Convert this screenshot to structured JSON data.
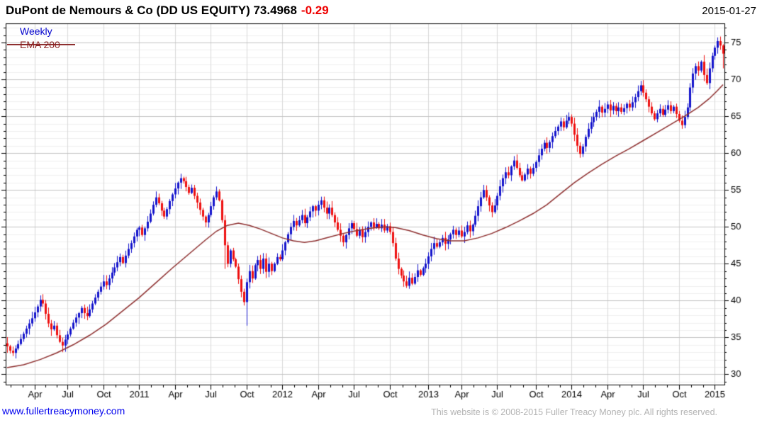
{
  "header": {
    "title_main": "DuPont de Nemours & Co (DD US EQUITY) 73.4968",
    "title_change": "-0.29",
    "date": "2015-01-27"
  },
  "legend": {
    "interval_label": "Weekly",
    "overlay_label": "EMA 200"
  },
  "footer": {
    "site_link": "www.fullertreacymoney.com",
    "copyright": "This website is © 2008-2015 Fuller Treacy Money plc. All rights reserved."
  },
  "colors": {
    "up_candle": "#1414cc",
    "down_candle": "#ee1111",
    "ema_line": "#8e2f2f",
    "grid_minor_h": "#efefef",
    "grid_major_h": "#c3c3c3",
    "grid_vertical": "#d9d9d9",
    "axis": "#000000",
    "tick_label": "#000000"
  },
  "chart_data": {
    "type": "candlestick",
    "title": "DuPont de Nemours & Co (DD US EQUITY)",
    "interval": "Weekly",
    "overlay": "EMA 200",
    "last_price": 73.4968,
    "change": -0.29,
    "as_of_date": "2015-01-27",
    "ylim": [
      28.6,
      77.6
    ],
    "y_ticks": [
      30,
      35,
      40,
      45,
      50,
      55,
      60,
      65,
      70,
      75
    ],
    "y_minor_step": 1,
    "x_ticks": [
      {
        "week": 10,
        "label": "Apr"
      },
      {
        "week": 22,
        "label": "Jul"
      },
      {
        "week": 35,
        "label": "Oct"
      },
      {
        "week": 48,
        "label": "2011"
      },
      {
        "week": 61,
        "label": "Apr"
      },
      {
        "week": 74,
        "label": "Jul"
      },
      {
        "week": 87,
        "label": "Oct"
      },
      {
        "week": 100,
        "label": "2012"
      },
      {
        "week": 113,
        "label": "Apr"
      },
      {
        "week": 126,
        "label": "Jul"
      },
      {
        "week": 139,
        "label": "Oct"
      },
      {
        "week": 153,
        "label": "2013"
      },
      {
        "week": 165,
        "label": "Apr"
      },
      {
        "week": 178,
        "label": "Jul"
      },
      {
        "week": 192,
        "label": "Oct"
      },
      {
        "week": 205,
        "label": "2014"
      },
      {
        "week": 218,
        "label": "Apr"
      },
      {
        "week": 231,
        "label": "Jul"
      },
      {
        "week": 244,
        "label": "Oct"
      },
      {
        "week": 257,
        "label": "2015"
      }
    ],
    "first_open": 34.2,
    "weekly_closes": [
      33.8,
      33.2,
      32.9,
      33.5,
      34.1,
      34.8,
      35.5,
      36.2,
      36.9,
      37.6,
      38.4,
      39.2,
      40.1,
      39.6,
      38.2,
      36.9,
      36.1,
      36.6,
      35.3,
      34.4,
      33.9,
      34.7,
      35.4,
      36.2,
      37.0,
      37.7,
      38.3,
      39.0,
      38.3,
      37.9,
      38.8,
      39.6,
      40.4,
      41.2,
      41.9,
      42.6,
      42.1,
      43.0,
      43.8,
      44.5,
      45.2,
      45.9,
      45.1,
      46.1,
      47.0,
      47.8,
      48.7,
      49.6,
      49.9,
      48.9,
      49.8,
      50.7,
      51.8,
      53.0,
      54.0,
      53.2,
      52.2,
      51.4,
      52.4,
      53.5,
      54.4,
      55.2,
      56.0,
      56.6,
      56.2,
      55.4,
      54.6,
      55.3,
      54.2,
      53.3,
      52.3,
      51.4,
      50.6,
      51.6,
      52.8,
      54.0,
      54.8,
      53.6,
      50.9,
      47.5,
      45.0,
      46.8,
      45.6,
      44.6,
      42.9,
      41.2,
      39.8,
      42.5,
      44.0,
      43.0,
      44.8,
      45.5,
      44.3,
      45.7,
      43.9,
      45.0,
      44.0,
      45.0,
      45.9,
      45.6,
      46.8,
      47.9,
      49.0,
      50.0,
      50.8,
      50.2,
      50.9,
      51.6,
      50.5,
      51.3,
      52.1,
      52.8,
      52.2,
      53.0,
      53.6,
      52.6,
      51.8,
      52.6,
      51.6,
      50.6,
      49.6,
      48.8,
      47.9,
      48.9,
      49.8,
      50.5,
      49.7,
      48.8,
      49.6,
      48.6,
      49.3,
      50.0,
      50.6,
      49.9,
      50.4,
      49.8,
      50.3,
      49.5,
      50.1,
      49.3,
      47.8,
      45.7,
      44.3,
      43.4,
      42.6,
      42.0,
      43.1,
      42.3,
      43.2,
      44.1,
      43.5,
      44.4,
      45.0,
      46.0,
      47.0,
      47.8,
      47.3,
      47.9,
      48.5,
      47.7,
      48.3,
      49.0,
      49.6,
      48.9,
      49.5,
      48.7,
      49.3,
      50.2,
      49.4,
      50.3,
      51.5,
      52.8,
      54.0,
      55.0,
      54.0,
      52.9,
      52.0,
      52.9,
      54.2,
      55.5,
      56.6,
      57.4,
      57.0,
      58.2,
      59.0,
      58.0,
      57.0,
      56.3,
      57.1,
      57.9,
      57.2,
      58.0,
      58.8,
      59.7,
      60.6,
      61.4,
      60.7,
      61.5,
      62.3,
      63.0,
      63.6,
      64.3,
      63.5,
      64.4,
      64.9,
      64.0,
      62.5,
      61.0,
      59.9,
      60.9,
      62.2,
      63.3,
      64.2,
      64.9,
      65.6,
      66.3,
      65.5,
      66.0,
      66.6,
      65.8,
      66.4,
      65.7,
      66.2,
      65.6,
      66.1,
      66.7,
      66.2,
      66.9,
      67.6,
      68.4,
      69.2,
      68.2,
      67.3,
      66.3,
      65.4,
      64.6,
      65.4,
      66.0,
      65.2,
      65.9,
      66.5,
      65.7,
      66.3,
      65.3,
      64.4,
      63.8,
      64.9,
      66.2,
      68.9,
      70.8,
      71.8,
      71.2,
      72.4,
      70.6,
      69.5,
      71.5,
      73.2,
      74.3,
      75.2,
      74.6,
      73.5
    ],
    "wick_overrides": {
      "12": {
        "high": 40.7
      },
      "20": {
        "low": 33.0
      },
      "63": {
        "high": 57.2
      },
      "79": {
        "low": 44.3
      },
      "87": {
        "low": 36.6
      },
      "146": {
        "low": 41.6
      },
      "173": {
        "high": 55.7
      },
      "184": {
        "high": 59.6
      },
      "230": {
        "high": 69.8
      },
      "245": {
        "low": 63.3
      },
      "258": {
        "high": 75.7
      },
      "260": {
        "low": 71.5
      }
    },
    "ema_anchors": [
      [
        0,
        30.9
      ],
      [
        6,
        31.3
      ],
      [
        12,
        32.0
      ],
      [
        18,
        32.9
      ],
      [
        24,
        34.0
      ],
      [
        30,
        35.3
      ],
      [
        36,
        36.8
      ],
      [
        42,
        38.6
      ],
      [
        48,
        40.4
      ],
      [
        54,
        42.4
      ],
      [
        60,
        44.4
      ],
      [
        66,
        46.3
      ],
      [
        72,
        48.2
      ],
      [
        76,
        49.4
      ],
      [
        80,
        50.2
      ],
      [
        84,
        50.5
      ],
      [
        88,
        50.2
      ],
      [
        92,
        49.7
      ],
      [
        96,
        49.1
      ],
      [
        100,
        48.5
      ],
      [
        104,
        48.1
      ],
      [
        108,
        47.9
      ],
      [
        112,
        48.1
      ],
      [
        117,
        48.6
      ],
      [
        122,
        49.1
      ],
      [
        127,
        49.5
      ],
      [
        132,
        49.8
      ],
      [
        137,
        50.0
      ],
      [
        141,
        49.9
      ],
      [
        146,
        49.5
      ],
      [
        151,
        48.9
      ],
      [
        156,
        48.4
      ],
      [
        161,
        48.1
      ],
      [
        166,
        48.1
      ],
      [
        171,
        48.5
      ],
      [
        176,
        49.1
      ],
      [
        181,
        49.9
      ],
      [
        186,
        50.8
      ],
      [
        191,
        51.8
      ],
      [
        196,
        53.0
      ],
      [
        201,
        54.5
      ],
      [
        206,
        56.0
      ],
      [
        211,
        57.3
      ],
      [
        216,
        58.5
      ],
      [
        221,
        59.6
      ],
      [
        226,
        60.6
      ],
      [
        231,
        61.7
      ],
      [
        236,
        62.8
      ],
      [
        241,
        63.9
      ],
      [
        246,
        65.0
      ],
      [
        251,
        66.2
      ],
      [
        255,
        67.4
      ],
      [
        258,
        68.5
      ],
      [
        260,
        69.3
      ]
    ],
    "legend_position": "top-left",
    "grid": "major+minor horizontal, quarterly vertical"
  }
}
